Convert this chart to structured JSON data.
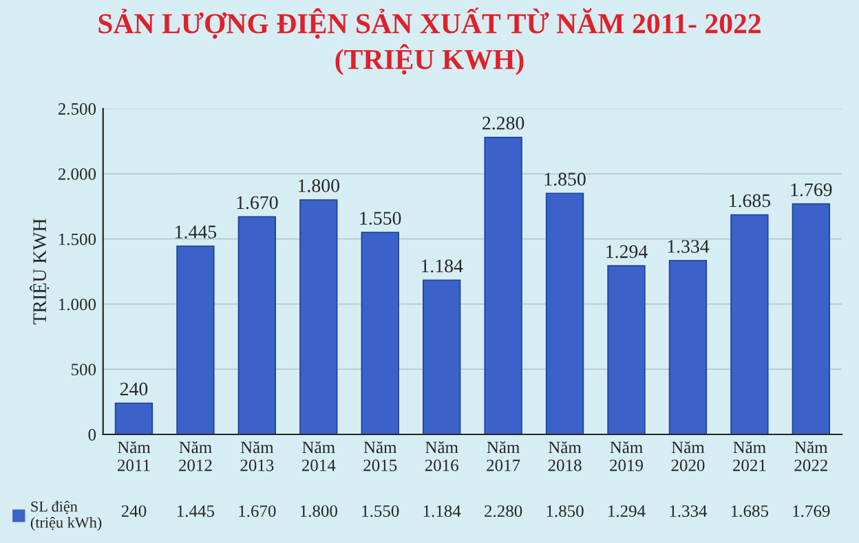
{
  "chart_data": {
    "type": "bar",
    "title": "SẢN LƯỢNG ĐIỆN SẢN XUẤT TỪ NĂM 2011- 2022\n(TRIỆU KWH)",
    "ylabel": "TRIỆU KWH",
    "categories": [
      "Năm\n2011",
      "Năm\n2012",
      "Năm\n2013",
      "Năm\n2014",
      "Năm\n2015",
      "Năm\n2016",
      "Năm\n2017",
      "Năm\n2018",
      "Năm\n2019",
      "Năm\n2020",
      "Năm\n2021",
      "Năm\n2022"
    ],
    "series": [
      {
        "name": "SL điện\n(triệu kWh)",
        "color": "#3a62c8",
        "values": [
          240,
          1445,
          1670,
          1800,
          1550,
          1184,
          2280,
          1850,
          1294,
          1334,
          1685,
          1769
        ],
        "value_labels": [
          "240",
          "1.445",
          "1.670",
          "1.800",
          "1.550",
          "1.184",
          "2.280",
          "1.850",
          "1.294",
          "1.334",
          "1.685",
          "1.769"
        ]
      }
    ],
    "ylim": [
      0,
      2500
    ],
    "yticks": [
      0,
      500,
      {
        "value": 1000,
        "label": "1.000"
      },
      {
        "value": 1500,
        "label": "1.500"
      },
      {
        "value": 2000,
        "label": "2.000"
      },
      {
        "value": 2500,
        "label": "2.500"
      }
    ],
    "grid": "y",
    "legend": "bottom"
  }
}
